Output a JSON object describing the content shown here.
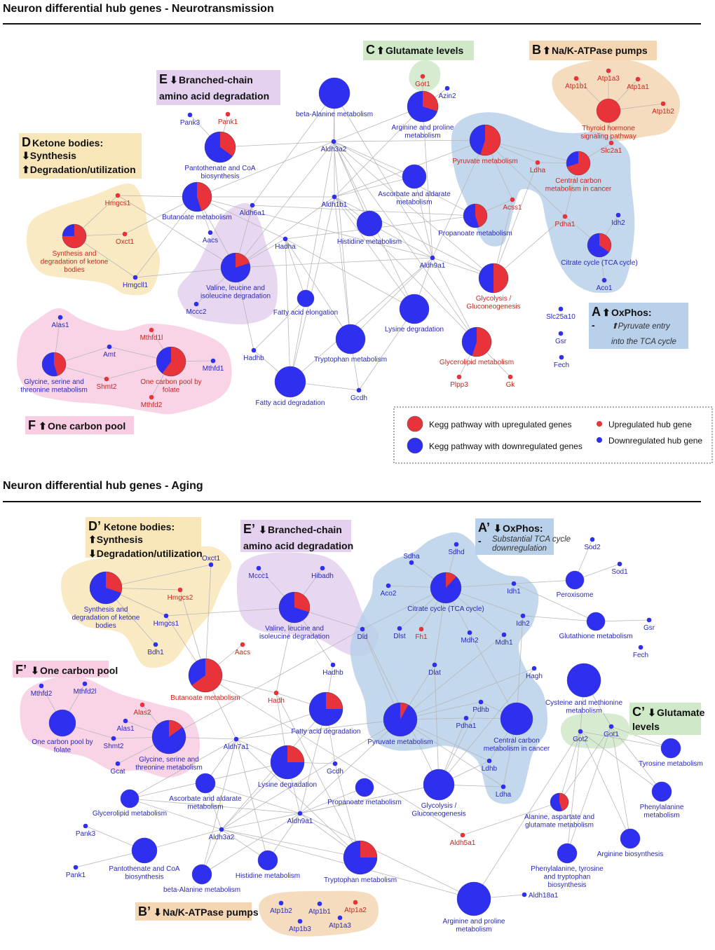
{
  "colors": {
    "up": "#e8333a",
    "down": "#2f2ff0",
    "up_label": "#c8281e",
    "down_label": "#2a2ab8",
    "edge": "#b8b8b8"
  },
  "panel1": {
    "title": "Neuron differential hub genes - Neurotransmission",
    "annotations": {
      "A": {
        "letter": "A",
        "arrow": "⬆",
        "title": "OxPhos:",
        "dash": "-",
        "l2": "⬆Pyruvate entry",
        "l3": "into the TCA cycle"
      },
      "B": {
        "letter": "B",
        "arrow": "⬆",
        "title": "Na/K-ATPase pumps"
      },
      "C": {
        "letter": "C",
        "arrow": "⬆",
        "title": "Glutamate levels"
      },
      "D": {
        "letter": "D",
        "title": "Ketone bodies:",
        "l2": "⬇Synthesis",
        "l3": "⬆Degradation/utilization"
      },
      "E": {
        "letter": "E",
        "arrow": "⬇",
        "l1": "Branched-chain",
        "l2": "amino acid degradation"
      },
      "F": {
        "letter": "F",
        "arrow": "⬆",
        "title": "One carbon pool"
      }
    },
    "legend": {
      "up_pathway": "Kegg pathway with upregulated genes",
      "down_pathway": "Kegg pathway with downregulated genes",
      "up_gene": "Upregulated hub gene",
      "down_gene": "Downregulated hub gene"
    },
    "pathways": [
      {
        "id": "bala",
        "label": [
          "beta-Alanine metabolism"
        ],
        "up": 0
      },
      {
        "id": "argpro",
        "label": [
          "Arginine and proline",
          "metabolism"
        ],
        "up": 0.3
      },
      {
        "id": "thyroid",
        "label": [
          "Thyroid hormone",
          "signaling pathway"
        ],
        "up": 1
      },
      {
        "id": "pant",
        "label": [
          "Pantothenate and CoA",
          "biosynthesis"
        ],
        "up": 0.35
      },
      {
        "id": "pyruvate",
        "label": [
          "Pyruvate metabolism"
        ],
        "up": 0.55
      },
      {
        "id": "ccm",
        "label": [
          "Central carbon",
          "metabolism in cancer"
        ],
        "up": 0.7
      },
      {
        "id": "asc",
        "label": [
          "Ascorbate and aldarate",
          "metabolism"
        ],
        "up": 0
      },
      {
        "id": "buta",
        "label": [
          "Butanoate metabolism"
        ],
        "up": 0.45
      },
      {
        "id": "prop",
        "label": [
          "Propanoate metabolism"
        ],
        "up": 0.45
      },
      {
        "id": "ketone",
        "label": [
          "Synthesis and",
          "degradation of ketone",
          "bodies"
        ],
        "up": 0.75
      },
      {
        "id": "hist",
        "label": [
          "Histidine metabolism"
        ],
        "up": 0
      },
      {
        "id": "tca",
        "label": [
          "Citrate cycle (TCA cycle)"
        ],
        "up": 0.35
      },
      {
        "id": "val",
        "label": [
          "Valine, leucine and",
          "isoleucine degradation"
        ],
        "up": 0.2
      },
      {
        "id": "glyc",
        "label": [
          "Glycolysis /",
          "Gluconeogenesis"
        ],
        "up": 0.5
      },
      {
        "id": "faelong",
        "label": [
          "Fatty acid elongation"
        ],
        "up": 0
      },
      {
        "id": "lys",
        "label": [
          "Lysine degradation"
        ],
        "up": 0
      },
      {
        "id": "gly",
        "label": [
          "Glycine, serine and",
          "threonine metabolism"
        ],
        "up": 0.45
      },
      {
        "id": "ocp",
        "label": [
          "One carbon pool by",
          "folate"
        ],
        "up": 0.6
      },
      {
        "id": "trp",
        "label": [
          "Tryptophan metabolism"
        ],
        "up": 0
      },
      {
        "id": "glycero",
        "label": [
          "Glycerolipid metabolism"
        ],
        "up": 0.55
      },
      {
        "id": "fadeg",
        "label": [
          "Fatty acid degradation"
        ],
        "up": 0
      }
    ],
    "genes": [
      {
        "id": "Got1",
        "up": true
      },
      {
        "id": "Azin2",
        "up": false
      },
      {
        "id": "Atp1b1",
        "up": true
      },
      {
        "id": "Atp1a3",
        "up": true
      },
      {
        "id": "Atp1a1",
        "up": true
      },
      {
        "id": "Atp1b2",
        "up": true
      },
      {
        "id": "Pank3",
        "up": false
      },
      {
        "id": "Pank1",
        "up": true
      },
      {
        "id": "Slc2a1",
        "up": true
      },
      {
        "id": "Ldha",
        "up": true
      },
      {
        "id": "Aldh3a2",
        "up": false
      },
      {
        "id": "Hmgcs1",
        "up": true
      },
      {
        "id": "Aldh1b1",
        "up": false
      },
      {
        "id": "Acss1",
        "up": true
      },
      {
        "id": "Pdha1",
        "up": true
      },
      {
        "id": "Idh2",
        "up": false
      },
      {
        "id": "Aldh6a1",
        "up": false
      },
      {
        "id": "Oxct1",
        "up": true
      },
      {
        "id": "Aacs",
        "up": false
      },
      {
        "id": "Hadha",
        "up": false
      },
      {
        "id": "Aldh9a1",
        "up": false
      },
      {
        "id": "Hmgcll1",
        "up": false
      },
      {
        "id": "Aco1",
        "up": false
      },
      {
        "id": "Mccc2",
        "up": false
      },
      {
        "id": "Slc25a10",
        "up": false
      },
      {
        "id": "Alas1",
        "up": false
      },
      {
        "id": "Mthfd1l",
        "up": true
      },
      {
        "id": "Gsr",
        "up": false
      },
      {
        "id": "Amt",
        "up": false
      },
      {
        "id": "Mthfd1",
        "up": false
      },
      {
        "id": "Hadhb",
        "up": false
      },
      {
        "id": "Fech",
        "up": false
      },
      {
        "id": "Shmt2",
        "up": true
      },
      {
        "id": "Plpp3",
        "up": true
      },
      {
        "id": "Gk",
        "up": true
      },
      {
        "id": "Mthfd2",
        "up": true
      },
      {
        "id": "Gcdh",
        "up": false
      }
    ]
  },
  "panel2": {
    "title": "Neuron differential hub genes - Aging",
    "annotations": {
      "A": {
        "letter": "A’",
        "arrow": "⬇",
        "title": "OxPhos:",
        "dash": "-",
        "l2": "Substantial TCA cycle",
        "l3": "downregulation"
      },
      "B": {
        "letter": "B’",
        "arrow": "⬇",
        "title": "Na/K-ATPase pumps"
      },
      "C": {
        "letter": "C’",
        "arrow": "⬇",
        "title": "Glutamate",
        "l2": "levels"
      },
      "D": {
        "letter": "D’",
        "title": "Ketone bodies:",
        "l2": "⬆Synthesis",
        "l3": "⬇Degradation/utilization"
      },
      "E": {
        "letter": "E’",
        "arrow": "⬇",
        "l1": "Branched-chain",
        "l2": "amino acid degradation"
      },
      "F": {
        "letter": "F’",
        "arrow": "⬇",
        "title": "One carbon pool"
      }
    },
    "pathways": [
      {
        "id": "ketone",
        "label": [
          "Synthesis and",
          "degradation of ketone",
          "bodies"
        ],
        "up": 0.3
      },
      {
        "id": "val",
        "label": [
          "Valine, leucine and",
          "isoleucine degradation"
        ],
        "up": 0.3
      },
      {
        "id": "tca",
        "label": [
          "Citrate cycle (TCA cycle)"
        ],
        "up": 0.12
      },
      {
        "id": "perox",
        "label": [
          "Peroxisome"
        ],
        "up": 0
      },
      {
        "id": "glut",
        "label": [
          "Glutathione metabolism"
        ],
        "up": 0
      },
      {
        "id": "buta",
        "label": [
          "Butanoate metabolism"
        ],
        "up": 0.65
      },
      {
        "id": "cys",
        "label": [
          "Cysteine and methionine",
          "metabolism"
        ],
        "up": 0
      },
      {
        "id": "ocp",
        "label": [
          "One carbon pool by",
          "folate"
        ],
        "up": 0
      },
      {
        "id": "gly",
        "label": [
          "Glycine, serine and",
          "threonine metabolism"
        ],
        "up": 0.15
      },
      {
        "id": "fadeg",
        "label": [
          "Fatty acid degradation"
        ],
        "up": 0.25
      },
      {
        "id": "pyr",
        "label": [
          "Pyruvate metabolism"
        ],
        "up": 0.08
      },
      {
        "id": "ccm",
        "label": [
          "Central carbon",
          "metabolism in cancer"
        ],
        "up": 0
      },
      {
        "id": "tyr",
        "label": [
          "Tyrosine metabolism"
        ],
        "up": 0
      },
      {
        "id": "lys",
        "label": [
          "Lysine degradation"
        ],
        "up": 0.25
      },
      {
        "id": "asc",
        "label": [
          "Ascorbate and aldarate",
          "metabolism"
        ],
        "up": 0
      },
      {
        "id": "prop",
        "label": [
          "Propanoate metabolism"
        ],
        "up": 0
      },
      {
        "id": "glyc",
        "label": [
          "Glycolysis /",
          "Gluconeogenesis"
        ],
        "up": 0
      },
      {
        "id": "glycero",
        "label": [
          "Glycerolipid metabolism"
        ],
        "up": 0
      },
      {
        "id": "phe",
        "label": [
          "Phenylalanine",
          "metabolism"
        ],
        "up": 0
      },
      {
        "id": "ala",
        "label": [
          "Alanine, aspartate and",
          "glutamate metabolism"
        ],
        "up": 0.45
      },
      {
        "id": "argbio",
        "label": [
          "Arginine biosynthesis"
        ],
        "up": 0
      },
      {
        "id": "pant",
        "label": [
          "Pantothenate and CoA",
          "biosynthesis"
        ],
        "up": 0
      },
      {
        "id": "hist",
        "label": [
          "Histidine metabolism"
        ],
        "up": 0
      },
      {
        "id": "trp",
        "label": [
          "Tryptophan metabolism"
        ],
        "up": 0.25
      },
      {
        "id": "phetyr",
        "label": [
          "Phenylalanine, tyrosine",
          "and tryptophan",
          "biosynthesis"
        ],
        "up": 0
      },
      {
        "id": "bala",
        "label": [
          "beta-Alanine metabolism"
        ],
        "up": 0
      },
      {
        "id": "argpro",
        "label": [
          "Arginine and proline",
          "metabolism"
        ],
        "up": 0
      }
    ],
    "genes": [
      {
        "id": "Sdhd",
        "up": false
      },
      {
        "id": "Sdha",
        "up": false
      },
      {
        "id": "Sod2",
        "up": false
      },
      {
        "id": "Sod1",
        "up": false
      },
      {
        "id": "Oxct1",
        "up": false
      },
      {
        "id": "Mccc1",
        "up": false
      },
      {
        "id": "Hibadh",
        "up": false
      },
      {
        "id": "Aco2",
        "up": false
      },
      {
        "id": "Idh1",
        "up": false
      },
      {
        "id": "Hmgcs2",
        "up": true
      },
      {
        "id": "Hmgcs1",
        "up": false
      },
      {
        "id": "Dld",
        "up": false
      },
      {
        "id": "Dlst",
        "up": false
      },
      {
        "id": "Fh1",
        "up": true
      },
      {
        "id": "Mdh2",
        "up": false
      },
      {
        "id": "Mdh1",
        "up": false
      },
      {
        "id": "Idh2",
        "up": false
      },
      {
        "id": "Gsr",
        "up": false
      },
      {
        "id": "Aacs",
        "up": true
      },
      {
        "id": "Bdh1",
        "up": false
      },
      {
        "id": "Fech",
        "up": false
      },
      {
        "id": "Hadhb",
        "up": false
      },
      {
        "id": "Dlat",
        "up": false
      },
      {
        "id": "Hagh",
        "up": false
      },
      {
        "id": "Mthfd2",
        "up": false
      },
      {
        "id": "Mthfd2l",
        "up": false
      },
      {
        "id": "Alas2",
        "up": true
      },
      {
        "id": "Hadh",
        "up": true
      },
      {
        "id": "Alas1",
        "up": false
      },
      {
        "id": "Pdhb",
        "up": false
      },
      {
        "id": "Pdha1",
        "up": false
      },
      {
        "id": "Got1",
        "up": false
      },
      {
        "id": "Got2",
        "up": false
      },
      {
        "id": "Shmt2",
        "up": false
      },
      {
        "id": "Aldh7a1",
        "up": false
      },
      {
        "id": "Gcat",
        "up": false
      },
      {
        "id": "Ldhb",
        "up": false
      },
      {
        "id": "Gcdh",
        "up": false
      },
      {
        "id": "Ldha",
        "up": false
      },
      {
        "id": "Aldh9a1",
        "up": false
      },
      {
        "id": "Pank3",
        "up": false
      },
      {
        "id": "Aldh3a2",
        "up": false
      },
      {
        "id": "Aldh5a1",
        "up": true
      },
      {
        "id": "Pank1",
        "up": false
      },
      {
        "id": "Aldh18a1",
        "up": false
      },
      {
        "id": "Atp1b2",
        "up": false
      },
      {
        "id": "Atp1b1",
        "up": false
      },
      {
        "id": "Atp1a2",
        "up": true
      },
      {
        "id": "Atp1b3",
        "up": false
      },
      {
        "id": "Atp1a3",
        "up": false
      }
    ]
  }
}
